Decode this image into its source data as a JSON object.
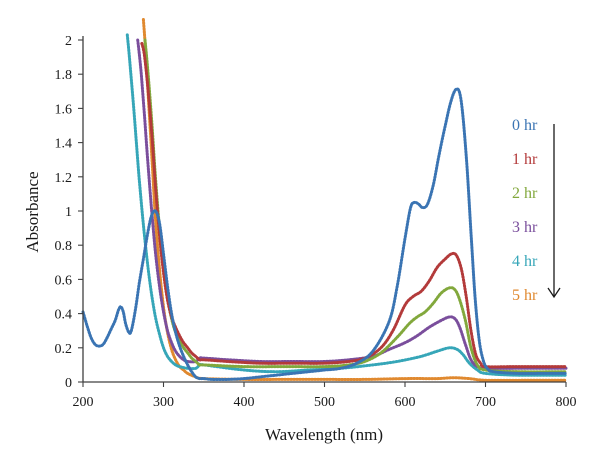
{
  "chart_data": {
    "type": "line",
    "title": "",
    "xlabel": "Wavelength (nm)",
    "ylabel": "Absorbance",
    "xlim": [
      200,
      800
    ],
    "ylim": [
      0,
      2
    ],
    "xticks": [
      200,
      300,
      400,
      500,
      600,
      700,
      800
    ],
    "yticks": [
      0,
      0.2,
      0.4,
      0.6,
      0.8,
      1,
      1.2,
      1.4,
      1.6,
      1.8,
      2
    ],
    "ytick_labels": [
      "0",
      "0.2",
      "0.4",
      "0.6",
      "0.8",
      "1",
      "1.2",
      "1.4",
      "1.6",
      "1.8",
      "2"
    ],
    "grid": false,
    "legend_position": "right",
    "legend_arrow": "down",
    "series": [
      {
        "name": "0 hr",
        "color": "#3a74b3",
        "points": [
          [
            200,
            0.41
          ],
          [
            205,
            0.33
          ],
          [
            210,
            0.26
          ],
          [
            215,
            0.22
          ],
          [
            220,
            0.21
          ],
          [
            225,
            0.22
          ],
          [
            230,
            0.26
          ],
          [
            235,
            0.31
          ],
          [
            240,
            0.36
          ],
          [
            244,
            0.42
          ],
          [
            247,
            0.44
          ],
          [
            250,
            0.41
          ],
          [
            253,
            0.34
          ],
          [
            257,
            0.29
          ],
          [
            260,
            0.3
          ],
          [
            265,
            0.42
          ],
          [
            270,
            0.58
          ],
          [
            275,
            0.72
          ],
          [
            280,
            0.86
          ],
          [
            285,
            0.97
          ],
          [
            290,
            1.0
          ],
          [
            295,
            0.93
          ],
          [
            300,
            0.75
          ],
          [
            305,
            0.56
          ],
          [
            310,
            0.4
          ],
          [
            315,
            0.29
          ],
          [
            320,
            0.21
          ],
          [
            325,
            0.15
          ],
          [
            330,
            0.1
          ],
          [
            335,
            0.06
          ],
          [
            340,
            0.03
          ],
          [
            345,
            0.02
          ],
          [
            350,
            0.02
          ],
          [
            360,
            0.015
          ],
          [
            380,
            0.015
          ],
          [
            400,
            0.02
          ],
          [
            420,
            0.03
          ],
          [
            440,
            0.04
          ],
          [
            460,
            0.05
          ],
          [
            480,
            0.06
          ],
          [
            500,
            0.07
          ],
          [
            520,
            0.08
          ],
          [
            540,
            0.11
          ],
          [
            560,
            0.18
          ],
          [
            580,
            0.35
          ],
          [
            590,
            0.55
          ],
          [
            600,
            0.84
          ],
          [
            607,
            1.02
          ],
          [
            612,
            1.05
          ],
          [
            617,
            1.04
          ],
          [
            622,
            1.02
          ],
          [
            628,
            1.04
          ],
          [
            635,
            1.15
          ],
          [
            642,
            1.32
          ],
          [
            650,
            1.5
          ],
          [
            657,
            1.64
          ],
          [
            663,
            1.71
          ],
          [
            668,
            1.69
          ],
          [
            672,
            1.55
          ],
          [
            677,
            1.26
          ],
          [
            682,
            0.87
          ],
          [
            687,
            0.5
          ],
          [
            692,
            0.25
          ],
          [
            697,
            0.13
          ],
          [
            702,
            0.08
          ],
          [
            710,
            0.06
          ],
          [
            740,
            0.05
          ],
          [
            770,
            0.05
          ],
          [
            800,
            0.05
          ]
        ]
      },
      {
        "name": "1 hr",
        "color": "#b33a3a",
        "points": [
          [
            273,
            1.98
          ],
          [
            276,
            1.92
          ],
          [
            280,
            1.75
          ],
          [
            285,
            1.48
          ],
          [
            290,
            1.15
          ],
          [
            295,
            0.86
          ],
          [
            300,
            0.64
          ],
          [
            305,
            0.48
          ],
          [
            310,
            0.38
          ],
          [
            315,
            0.32
          ],
          [
            320,
            0.27
          ],
          [
            325,
            0.23
          ],
          [
            330,
            0.2
          ],
          [
            335,
            0.17
          ],
          [
            340,
            0.15
          ],
          [
            345,
            0.13
          ],
          [
            350,
            0.13
          ],
          [
            380,
            0.12
          ],
          [
            420,
            0.11
          ],
          [
            460,
            0.11
          ],
          [
            500,
            0.11
          ],
          [
            530,
            0.12
          ],
          [
            550,
            0.14
          ],
          [
            570,
            0.2
          ],
          [
            585,
            0.3
          ],
          [
            600,
            0.45
          ],
          [
            610,
            0.5
          ],
          [
            620,
            0.53
          ],
          [
            630,
            0.59
          ],
          [
            640,
            0.67
          ],
          [
            650,
            0.72
          ],
          [
            658,
            0.75
          ],
          [
            664,
            0.74
          ],
          [
            670,
            0.66
          ],
          [
            676,
            0.5
          ],
          [
            682,
            0.3
          ],
          [
            688,
            0.16
          ],
          [
            694,
            0.11
          ],
          [
            700,
            0.09
          ],
          [
            740,
            0.09
          ],
          [
            800,
            0.09
          ]
        ]
      },
      {
        "name": "2 hr",
        "color": "#82a83c",
        "points": [
          [
            277,
            2.0
          ],
          [
            280,
            1.85
          ],
          [
            285,
            1.55
          ],
          [
            290,
            1.2
          ],
          [
            295,
            0.9
          ],
          [
            300,
            0.66
          ],
          [
            305,
            0.49
          ],
          [
            310,
            0.37
          ],
          [
            315,
            0.29
          ],
          [
            320,
            0.24
          ],
          [
            325,
            0.2
          ],
          [
            330,
            0.17
          ],
          [
            335,
            0.14
          ],
          [
            340,
            0.12
          ],
          [
            345,
            0.1
          ],
          [
            350,
            0.1
          ],
          [
            400,
            0.09
          ],
          [
            450,
            0.09
          ],
          [
            500,
            0.09
          ],
          [
            530,
            0.1
          ],
          [
            550,
            0.12
          ],
          [
            570,
            0.17
          ],
          [
            590,
            0.26
          ],
          [
            605,
            0.34
          ],
          [
            615,
            0.38
          ],
          [
            625,
            0.41
          ],
          [
            635,
            0.46
          ],
          [
            645,
            0.52
          ],
          [
            655,
            0.55
          ],
          [
            662,
            0.54
          ],
          [
            668,
            0.48
          ],
          [
            675,
            0.36
          ],
          [
            682,
            0.2
          ],
          [
            690,
            0.1
          ],
          [
            700,
            0.07
          ],
          [
            740,
            0.06
          ],
          [
            800,
            0.06
          ]
        ]
      },
      {
        "name": "3 hr",
        "color": "#7a4e9c",
        "points": [
          [
            268,
            2.0
          ],
          [
            272,
            1.82
          ],
          [
            276,
            1.58
          ],
          [
            280,
            1.32
          ],
          [
            285,
            1.02
          ],
          [
            290,
            0.76
          ],
          [
            295,
            0.56
          ],
          [
            300,
            0.41
          ],
          [
            305,
            0.3
          ],
          [
            310,
            0.23
          ],
          [
            315,
            0.18
          ],
          [
            320,
            0.15
          ],
          [
            325,
            0.13
          ],
          [
            330,
            0.12
          ],
          [
            340,
            0.12
          ],
          [
            345,
            0.14
          ],
          [
            350,
            0.14
          ],
          [
            380,
            0.13
          ],
          [
            420,
            0.12
          ],
          [
            460,
            0.12
          ],
          [
            500,
            0.12
          ],
          [
            530,
            0.13
          ],
          [
            560,
            0.15
          ],
          [
            580,
            0.19
          ],
          [
            600,
            0.23
          ],
          [
            615,
            0.27
          ],
          [
            630,
            0.32
          ],
          [
            645,
            0.36
          ],
          [
            655,
            0.38
          ],
          [
            662,
            0.37
          ],
          [
            668,
            0.32
          ],
          [
            675,
            0.22
          ],
          [
            682,
            0.13
          ],
          [
            690,
            0.09
          ],
          [
            700,
            0.08
          ],
          [
            740,
            0.08
          ],
          [
            800,
            0.08
          ]
        ]
      },
      {
        "name": "4 hr",
        "color": "#36a6b8",
        "points": [
          [
            255,
            2.03
          ],
          [
            258,
            1.88
          ],
          [
            262,
            1.66
          ],
          [
            266,
            1.42
          ],
          [
            270,
            1.18
          ],
          [
            275,
            0.92
          ],
          [
            280,
            0.7
          ],
          [
            285,
            0.52
          ],
          [
            290,
            0.38
          ],
          [
            295,
            0.28
          ],
          [
            300,
            0.2
          ],
          [
            305,
            0.15
          ],
          [
            310,
            0.12
          ],
          [
            315,
            0.1
          ],
          [
            320,
            0.09
          ],
          [
            330,
            0.08
          ],
          [
            340,
            0.08
          ],
          [
            345,
            0.1
          ],
          [
            350,
            0.1
          ],
          [
            400,
            0.07
          ],
          [
            440,
            0.06
          ],
          [
            480,
            0.07
          ],
          [
            520,
            0.08
          ],
          [
            560,
            0.1
          ],
          [
            590,
            0.12
          ],
          [
            620,
            0.15
          ],
          [
            640,
            0.18
          ],
          [
            655,
            0.2
          ],
          [
            665,
            0.19
          ],
          [
            672,
            0.16
          ],
          [
            680,
            0.11
          ],
          [
            690,
            0.07
          ],
          [
            700,
            0.05
          ],
          [
            740,
            0.04
          ],
          [
            800,
            0.04
          ]
        ]
      },
      {
        "name": "5 hr",
        "color": "#e0892f",
        "points": [
          [
            275,
            2.12
          ],
          [
            278,
            1.92
          ],
          [
            282,
            1.6
          ],
          [
            286,
            1.28
          ],
          [
            290,
            0.96
          ],
          [
            295,
            0.66
          ],
          [
            300,
            0.44
          ],
          [
            305,
            0.29
          ],
          [
            310,
            0.19
          ],
          [
            315,
            0.13
          ],
          [
            320,
            0.09
          ],
          [
            325,
            0.07
          ],
          [
            330,
            0.05
          ],
          [
            340,
            0.03
          ],
          [
            350,
            0.02
          ],
          [
            400,
            0.015
          ],
          [
            450,
            0.015
          ],
          [
            500,
            0.015
          ],
          [
            550,
            0.015
          ],
          [
            600,
            0.02
          ],
          [
            640,
            0.02
          ],
          [
            660,
            0.025
          ],
          [
            680,
            0.02
          ],
          [
            700,
            0.01
          ],
          [
            750,
            0.01
          ],
          [
            800,
            0.01
          ]
        ]
      }
    ]
  }
}
